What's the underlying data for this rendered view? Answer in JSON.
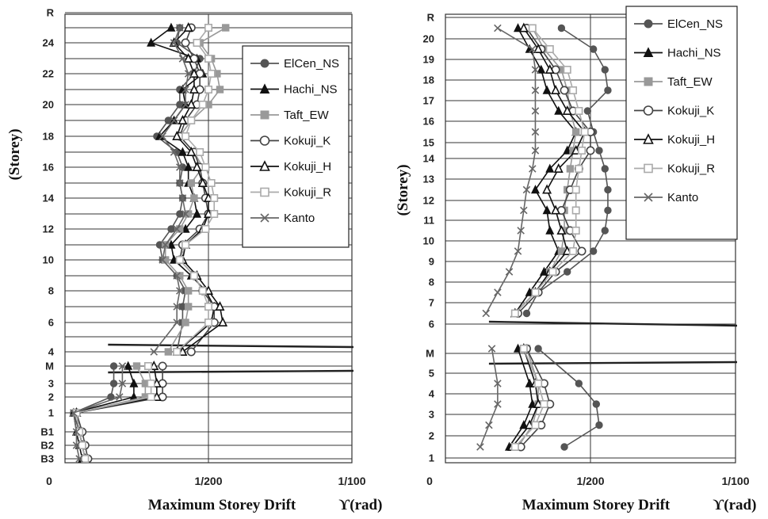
{
  "chart_data": [
    {
      "type": "line",
      "ylabel": "(Storey)",
      "xlabel": "Maximum Storey Drift",
      "xunit": "ϒ(rad)",
      "x_ticks": [
        "0",
        "1/200",
        "1/100"
      ],
      "xlim": [
        0,
        0.01
      ],
      "y_ticks": [
        "B3",
        "B2",
        "B1",
        "1",
        "2",
        "3",
        "M",
        "4",
        "6",
        "8",
        "10",
        "12",
        "14",
        "16",
        "18",
        "20",
        "22",
        "24",
        "R"
      ],
      "grid": true,
      "legend_position": "top-right",
      "series": [
        {
          "name": "ElCen_NS",
          "y": [
            "B3",
            "B2",
            "B1",
            "1",
            "2",
            "3",
            "M",
            "4",
            "6",
            "7",
            "8",
            "9",
            "10",
            "11",
            "12",
            "13",
            "14",
            "15",
            "16",
            "17",
            "18",
            "19",
            "20",
            "21",
            "22",
            "23",
            "24",
            "25"
          ],
          "x": [
            0.0007,
            0.0006,
            0.0005,
            0.0003,
            0.0016,
            0.0017,
            0.0017,
            0.0039,
            0.0041,
            0.0041,
            0.0042,
            0.0039,
            0.0034,
            0.0033,
            0.0037,
            0.004,
            0.0041,
            0.004,
            0.0041,
            0.0039,
            0.0032,
            0.0036,
            0.004,
            0.004,
            0.0045,
            0.0047,
            0.0039,
            0.004
          ]
        },
        {
          "name": "Hachi_NS",
          "y": [
            "B3",
            "B2",
            "B1",
            "1",
            "2",
            "3",
            "M",
            "4",
            "6",
            "7",
            "8",
            "9",
            "10",
            "11",
            "12",
            "13",
            "14",
            "15",
            "16",
            "17",
            "18",
            "19",
            "20",
            "21",
            "22",
            "23",
            "24",
            "25"
          ],
          "x": [
            0.0006,
            0.0005,
            0.0004,
            0.0003,
            0.0024,
            0.0024,
            0.0022,
            0.0039,
            0.0051,
            0.0052,
            0.0049,
            0.0044,
            0.0038,
            0.0037,
            0.0042,
            0.0046,
            0.0045,
            0.0043,
            0.0043,
            0.0041,
            0.0033,
            0.0038,
            0.0042,
            0.0041,
            0.0048,
            0.0046,
            0.003,
            0.0037
          ]
        },
        {
          "name": "Taft_EW",
          "y": [
            "B3",
            "B2",
            "B1",
            "1",
            "2",
            "3",
            "M",
            "4",
            "6",
            "7",
            "8",
            "9",
            "10",
            "11",
            "12",
            "13",
            "14",
            "15",
            "16",
            "17",
            "18",
            "19",
            "20",
            "21",
            "22",
            "23",
            "24",
            "25"
          ],
          "x": [
            0.0007,
            0.0006,
            0.0005,
            0.0004,
            0.0028,
            0.0028,
            0.0025,
            0.0036,
            0.0042,
            0.0043,
            0.0043,
            0.004,
            0.0035,
            0.0035,
            0.004,
            0.0043,
            0.0045,
            0.0044,
            0.0048,
            0.0045,
            0.004,
            0.0044,
            0.005,
            0.0054,
            0.0053,
            0.0051,
            0.0047,
            0.0056
          ]
        },
        {
          "name": "Kokuji_K",
          "y": [
            "B3",
            "B2",
            "B1",
            "1",
            "2",
            "3",
            "M",
            "4",
            "6",
            "7",
            "8",
            "9",
            "10",
            "11",
            "12",
            "13",
            "14",
            "15",
            "16",
            "17",
            "18",
            "19",
            "20",
            "21",
            "22",
            "23",
            "24",
            "25"
          ],
          "x": [
            0.0008,
            0.0007,
            0.0006,
            0.0004,
            0.0034,
            0.0034,
            0.0034,
            0.0044,
            0.0052,
            0.0052,
            0.0048,
            0.0045,
            0.004,
            0.0041,
            0.0047,
            0.005,
            0.0049,
            0.0048,
            0.0047,
            0.0045,
            0.004,
            0.0042,
            0.0046,
            0.0047,
            0.0047,
            0.0045,
            0.0042,
            0.0044
          ]
        },
        {
          "name": "Kokuji_H",
          "y": [
            "B3",
            "B2",
            "B1",
            "1",
            "2",
            "3",
            "M",
            "4",
            "6",
            "7",
            "8",
            "9",
            "10",
            "11",
            "12",
            "13",
            "14",
            "15",
            "16",
            "17",
            "18",
            "19",
            "20",
            "21",
            "22",
            "23",
            "24",
            "25"
          ],
          "x": [
            0.0007,
            0.0006,
            0.0005,
            0.0004,
            0.0032,
            0.0032,
            0.0031,
            0.0041,
            0.0055,
            0.0054,
            0.005,
            0.0046,
            0.0041,
            0.0042,
            0.0048,
            0.005,
            0.005,
            0.0048,
            0.0046,
            0.0044,
            0.0039,
            0.0041,
            0.0044,
            0.0045,
            0.0045,
            0.0043,
            0.0038,
            0.0043
          ]
        },
        {
          "name": "Kokuji_R",
          "y": [
            "B3",
            "B2",
            "B1",
            "1",
            "2",
            "3",
            "M",
            "4",
            "6",
            "7",
            "8",
            "9",
            "10",
            "11",
            "12",
            "13",
            "14",
            "15",
            "16",
            "17",
            "18",
            "19",
            "20",
            "21",
            "22",
            "23",
            "24",
            "25"
          ],
          "x": [
            0.0007,
            0.0006,
            0.0005,
            0.0004,
            0.003,
            0.003,
            0.0029,
            0.0039,
            0.005,
            0.005,
            0.0048,
            0.0045,
            0.004,
            0.0042,
            0.0049,
            0.0052,
            0.0052,
            0.0051,
            0.0049,
            0.0047,
            0.0042,
            0.0044,
            0.0048,
            0.005,
            0.0051,
            0.005,
            0.0046,
            0.005
          ]
        },
        {
          "name": "Kanto",
          "y": [
            "B3",
            "B2",
            "B1",
            "1",
            "2",
            "3",
            "M",
            "4",
            "6",
            "7",
            "8",
            "9",
            "10",
            "11",
            "12",
            "13",
            "14",
            "15",
            "16",
            "17",
            "18",
            "19",
            "20",
            "21",
            "22",
            "23",
            "24",
            "25"
          ],
          "x": [
            0.0005,
            0.0004,
            0.0004,
            0.0003,
            0.0019,
            0.002,
            0.002,
            0.0031,
            0.0039,
            0.0039,
            0.004,
            0.0039,
            0.0034,
            0.0035,
            0.0039,
            0.0042,
            0.0041,
            0.004,
            0.004,
            0.0038,
            0.0034,
            0.0038,
            0.0042,
            0.0042,
            0.0043,
            0.0041,
            0.0038,
            0.004
          ]
        }
      ]
    },
    {
      "type": "line",
      "ylabel": "(Storey)",
      "xlabel": "Maximum Storey Drift",
      "xunit": "ϒ(rad)",
      "x_ticks": [
        "0",
        "1/200",
        "1/100"
      ],
      "xlim": [
        0,
        0.01
      ],
      "y_ticks": [
        "1",
        "2",
        "3",
        "4",
        "5",
        "M",
        "6",
        "7",
        "8",
        "9",
        "10",
        "11",
        "12",
        "13",
        "14",
        "15",
        "16",
        "17",
        "18",
        "19",
        "20",
        "R"
      ],
      "grid": true,
      "legend_position": "top-right",
      "series": [
        {
          "name": "ElCen_NS",
          "y": [
            "1.5",
            "2.5",
            "3.5",
            "4.5",
            "5.5",
            "6.5",
            "7.5",
            "8.5",
            "9.5",
            "10.5",
            "11.5",
            "12.5",
            "13.5",
            "14.5",
            "15.5",
            "16.5",
            "17.5",
            "18.5",
            "19.5",
            "20.5"
          ],
          "x": [
            0.0041,
            0.0053,
            0.0052,
            0.0046,
            0.0032,
            0.0028,
            0.0032,
            0.0042,
            0.0051,
            0.0055,
            0.0056,
            0.0056,
            0.0055,
            0.0053,
            0.0051,
            0.0049,
            0.0056,
            0.0055,
            0.0051,
            0.004
          ]
        },
        {
          "name": "Hachi_NS",
          "y": [
            "1.5",
            "2.5",
            "3.5",
            "4.5",
            "5.5",
            "6.5",
            "7.5",
            "8.5",
            "9.5",
            "10.5",
            "11.5",
            "12.5",
            "13.5",
            "14.5",
            "15.5",
            "16.5",
            "17.5",
            "18.5",
            "19.5",
            "20.5"
          ],
          "x": [
            0.0022,
            0.0027,
            0.003,
            0.0029,
            0.0025,
            0.0024,
            0.0029,
            0.0034,
            0.0039,
            0.0036,
            0.0035,
            0.0031,
            0.0036,
            0.0042,
            0.0045,
            0.0039,
            0.0035,
            0.0033,
            0.0029,
            0.0025
          ]
        },
        {
          "name": "Taft_EW",
          "y": [
            "1.5",
            "2.5",
            "3.5",
            "4.5",
            "5.5",
            "6.5",
            "7.5",
            "8.5",
            "9.5",
            "10.5",
            "11.5",
            "12.5",
            "13.5",
            "14.5",
            "15.5",
            "16.5",
            "17.5",
            "18.5",
            "19.5",
            "20.5"
          ],
          "x": [
            0.0025,
            0.003,
            0.0032,
            0.0032,
            0.0028,
            0.0024,
            0.0031,
            0.0036,
            0.004,
            0.0041,
            0.0041,
            0.0042,
            0.0043,
            0.0044,
            0.0045,
            0.0043,
            0.0042,
            0.004,
            0.0034,
            0.003
          ]
        },
        {
          "name": "Kokuji_K",
          "y": [
            "1.5",
            "2.5",
            "3.5",
            "4.5",
            "5.5",
            "6.5",
            "7.5",
            "8.5",
            "9.5",
            "10.5",
            "11.5",
            "12.5",
            "13.5",
            "14.5",
            "15.5",
            "16.5",
            "17.5",
            "18.5",
            "19.5",
            "20.5"
          ],
          "x": [
            0.0026,
            0.0033,
            0.0036,
            0.0034,
            0.0028,
            0.0025,
            0.0032,
            0.0038,
            0.0047,
            0.0043,
            0.004,
            0.0043,
            0.0046,
            0.005,
            0.005,
            0.0044,
            0.0041,
            0.0038,
            0.0033,
            0.0028
          ]
        },
        {
          "name": "Kokuji_H",
          "y": [
            "1.5",
            "2.5",
            "3.5",
            "4.5",
            "5.5",
            "6.5",
            "7.5",
            "8.5",
            "9.5",
            "10.5",
            "11.5",
            "12.5",
            "13.5",
            "14.5",
            "15.5",
            "16.5",
            "17.5",
            "18.5",
            "19.5",
            "20.5"
          ],
          "x": [
            0.0023,
            0.0029,
            0.0032,
            0.0031,
            0.0027,
            0.0024,
            0.0031,
            0.0036,
            0.0042,
            0.004,
            0.0038,
            0.0035,
            0.0039,
            0.0045,
            0.0048,
            0.0042,
            0.0038,
            0.0036,
            0.0032,
            0.0027
          ]
        },
        {
          "name": "Kokuji_R",
          "y": [
            "1.5",
            "2.5",
            "3.5",
            "4.5",
            "5.5",
            "6.5",
            "7.5",
            "8.5",
            "9.5",
            "10.5",
            "11.5",
            "12.5",
            "13.5",
            "14.5",
            "15.5",
            "16.5",
            "17.5",
            "18.5",
            "19.5",
            "20.5"
          ],
          "x": [
            0.0024,
            0.0031,
            0.0034,
            0.0032,
            0.0027,
            0.0024,
            0.0031,
            0.0037,
            0.0044,
            0.0045,
            0.0045,
            0.0045,
            0.0046,
            0.0047,
            0.0048,
            0.0046,
            0.0044,
            0.0042,
            0.0036,
            0.003
          ]
        },
        {
          "name": "Kanto",
          "y": [
            "1.5",
            "2.5",
            "3.5",
            "4.5",
            "5.5",
            "6.5",
            "7.5",
            "8.5",
            "9.5",
            "10.5",
            "11.5",
            "12.5",
            "13.5",
            "14.5",
            "15.5",
            "16.5",
            "17.5",
            "18.5",
            "19.5",
            "20.5"
          ],
          "x": [
            0.0012,
            0.0015,
            0.0018,
            0.0018,
            0.0016,
            0.0014,
            0.0018,
            0.0022,
            0.0025,
            0.0026,
            0.0027,
            0.0028,
            0.003,
            0.0031,
            0.0031,
            0.0031,
            0.0031,
            0.0031,
            0.003,
            0.0018
          ]
        }
      ]
    }
  ],
  "styles": {
    "ElCen_NS": {
      "color": "#555555",
      "marker": "filled-circle-icon"
    },
    "Hachi_NS": {
      "color": "#111111",
      "marker": "filled-triangle-icon"
    },
    "Taft_EW": {
      "color": "#999999",
      "marker": "filled-square-icon"
    },
    "Kokuji_K": {
      "color": "#444444",
      "marker": "open-circle-icon"
    },
    "Kokuji_H": {
      "color": "#111111",
      "marker": "open-triangle-icon"
    },
    "Kokuji_R": {
      "color": "#aaaaaa",
      "marker": "open-square-icon"
    },
    "Kanto": {
      "color": "#666666",
      "marker": "cross-icon"
    }
  }
}
